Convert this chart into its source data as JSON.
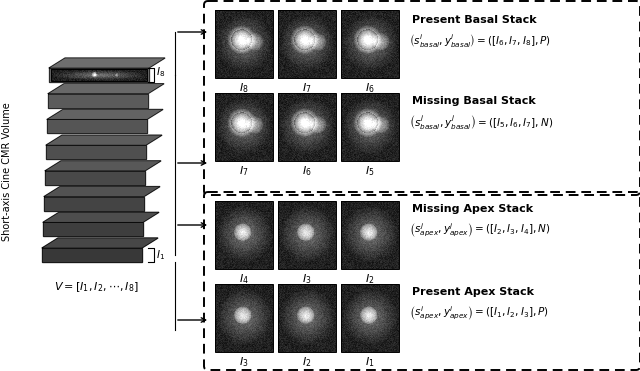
{
  "fig_width": 6.4,
  "fig_height": 3.71,
  "dpi": 100,
  "bg_color": "#ffffff",
  "left_label": "Short-axis Cine CMR Volume",
  "top_box_title1": "Present Basal Stack",
  "top_box_title2": "Missing Basal Stack",
  "bot_box_title1": "Missing Apex Stack",
  "bot_box_title2": "Present Apex Stack",
  "top_row1_labels": [
    "8",
    "7",
    "6"
  ],
  "top_row2_labels": [
    "7",
    "6",
    "5"
  ],
  "bot_row1_labels": [
    "4",
    "3",
    "2"
  ],
  "bot_row2_labels": [
    "3",
    "2",
    "1"
  ]
}
